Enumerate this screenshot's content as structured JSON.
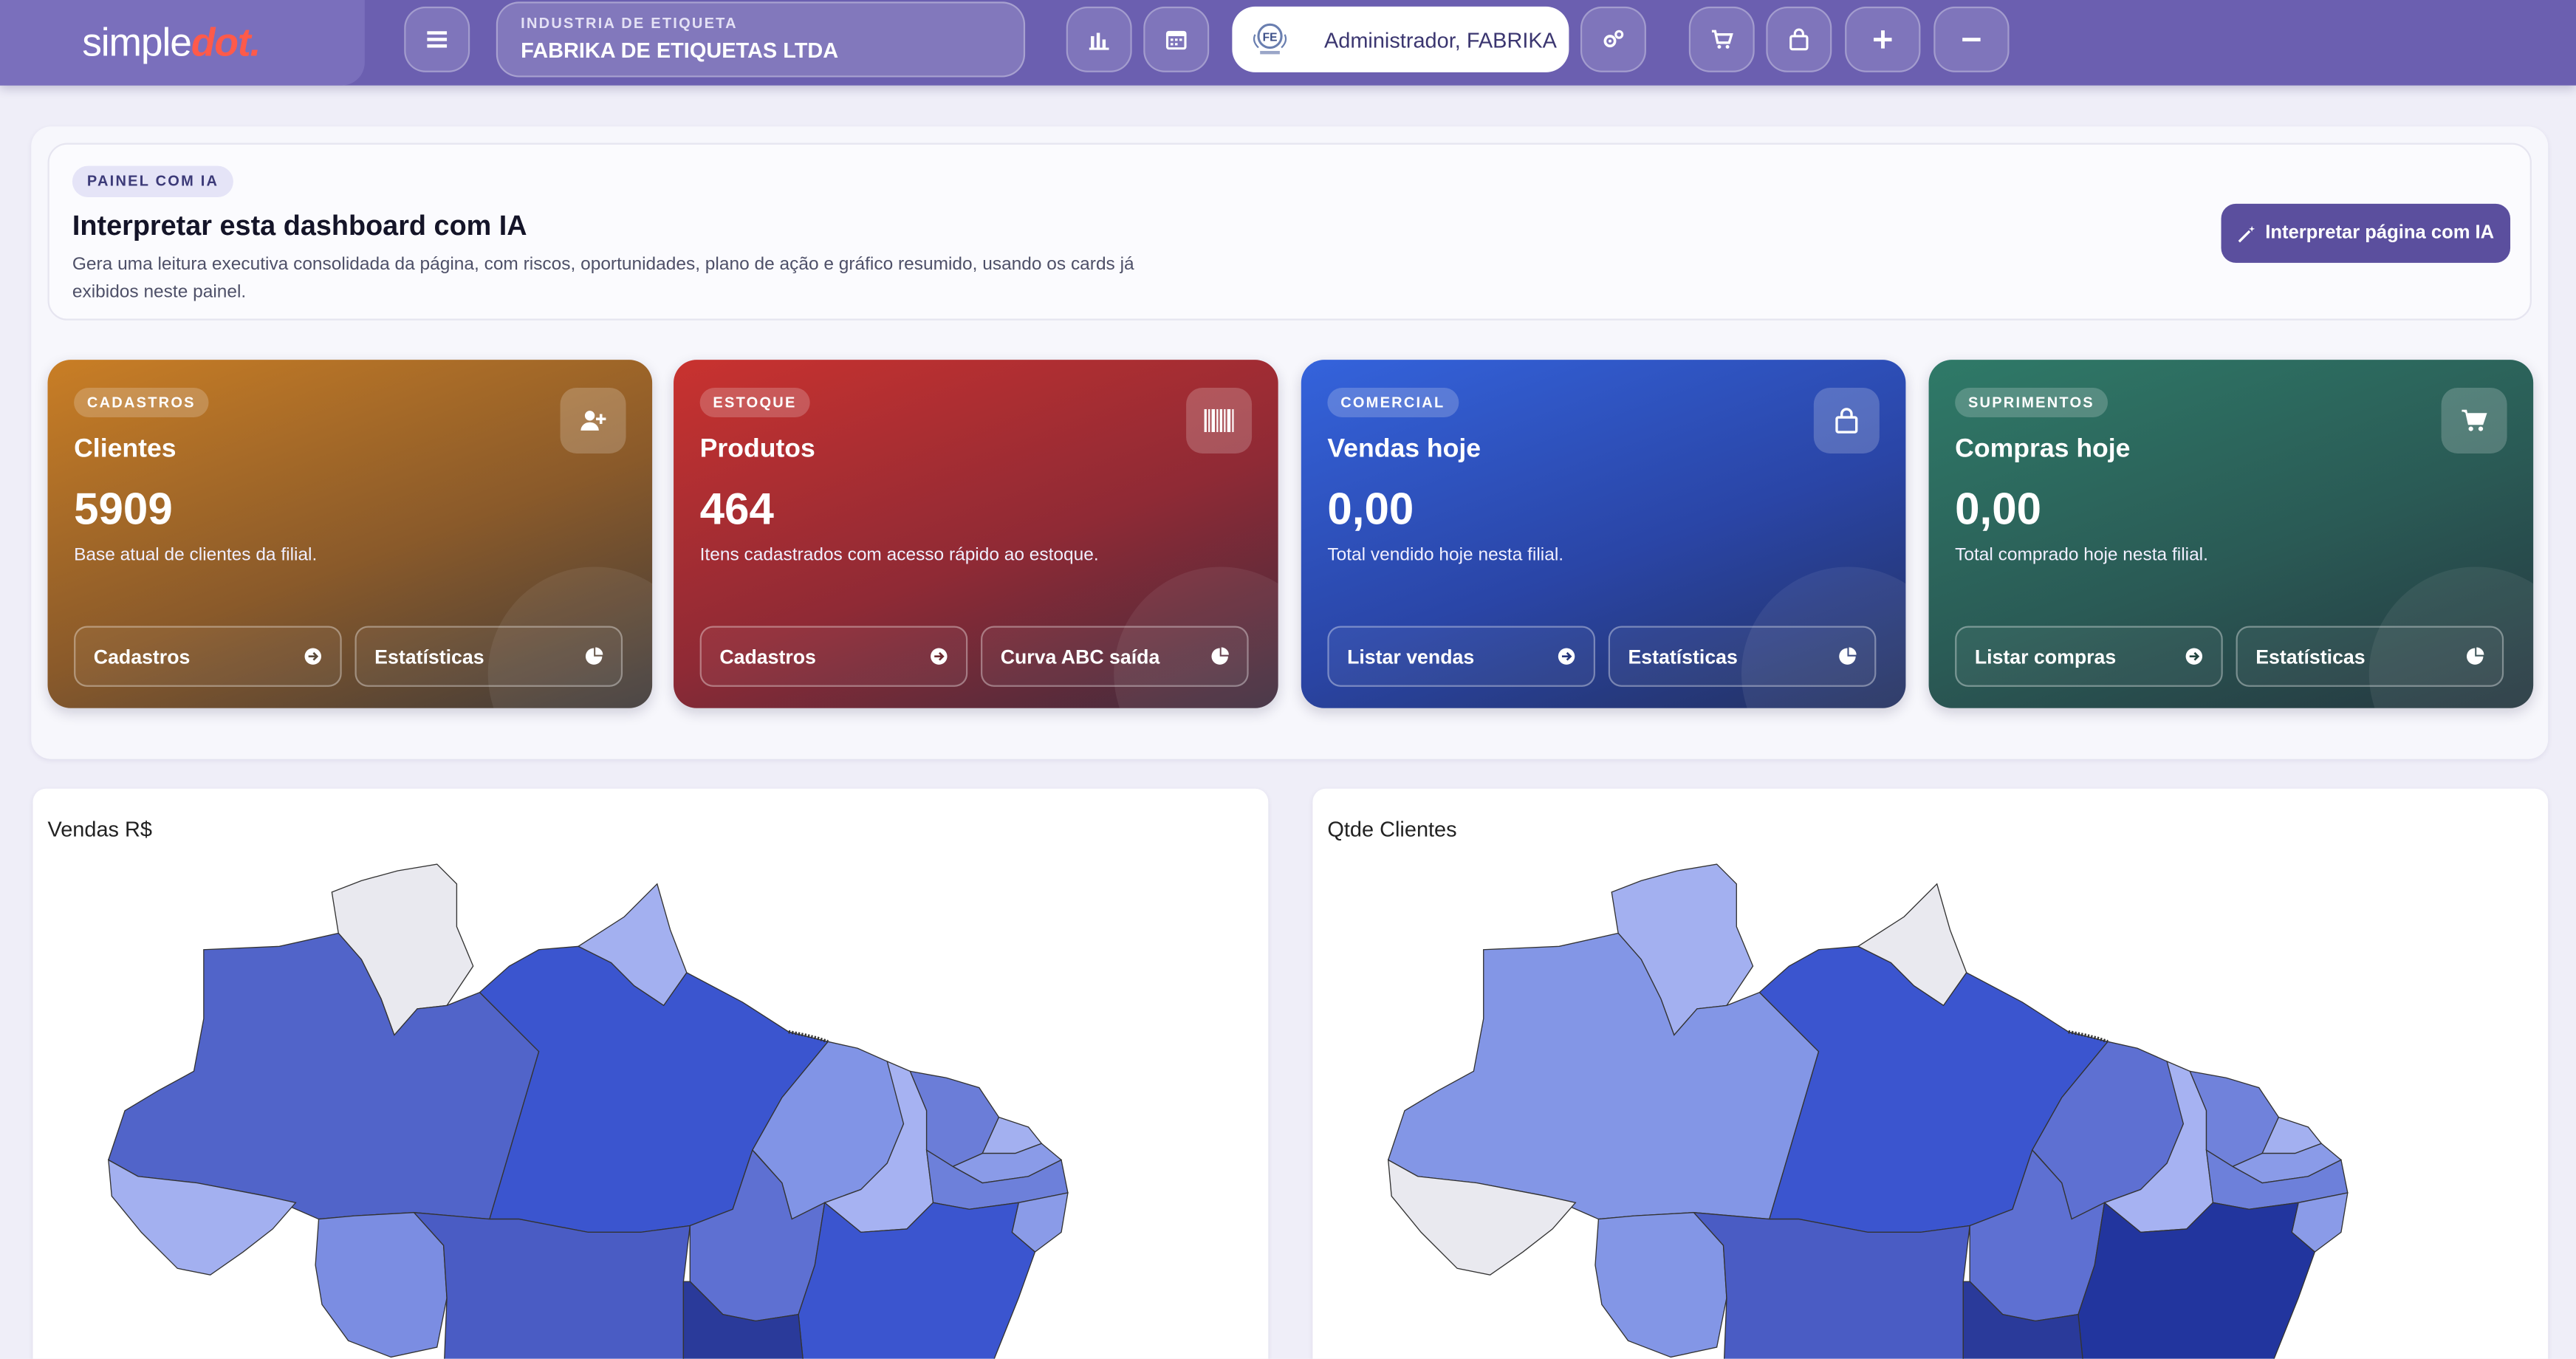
{
  "brand": {
    "name_part1": "simple",
    "name_part2": "dot."
  },
  "company": {
    "label": "INDUSTRIA DE ETIQUETA",
    "name": "FABRIKA DE ETIQUETAS LTDA"
  },
  "user": {
    "name": "Administrador, FABRIKA"
  },
  "ai_panel": {
    "chip": "PAINEL COM IA",
    "title": "Interpretar esta dashboard com IA",
    "description": "Gera uma leitura executiva consolidada da página, com riscos, oportunidades, plano de ação e gráfico resumido, usando os cards já exibidos neste painel.",
    "button": "Interpretar página com IA"
  },
  "kpis": [
    {
      "chip": "CADASTROS",
      "title": "Clientes",
      "value": "5909",
      "desc": "Base atual de clientes da filial.",
      "btn1": "Cadastros",
      "btn2": "Estatísticas",
      "icon": "user-plus-icon"
    },
    {
      "chip": "ESTOQUE",
      "title": "Produtos",
      "value": "464",
      "desc": "Itens cadastrados com acesso rápido ao estoque.",
      "btn1": "Cadastros",
      "btn2": "Curva ABC saída",
      "icon": "barcode-icon"
    },
    {
      "chip": "COMERCIAL",
      "title": "Vendas hoje",
      "value": "0,00",
      "desc": "Total vendido hoje nesta filial.",
      "btn1": "Listar vendas",
      "btn2": "Estatísticas",
      "icon": "shopping-bag-icon"
    },
    {
      "chip": "SUPRIMENTOS",
      "title": "Compras hoje",
      "value": "0,00",
      "desc": "Total comprado hoje nesta filial.",
      "btn1": "Listar compras",
      "btn2": "Estatísticas",
      "icon": "cart-icon"
    }
  ],
  "maps": [
    {
      "title": "Vendas R$"
    },
    {
      "title": "Qtde Clientes"
    }
  ],
  "colors": {
    "topbar": "#6b5fb0",
    "accent": "#5b4f9e",
    "logo_dot": "#ff5a4a"
  }
}
